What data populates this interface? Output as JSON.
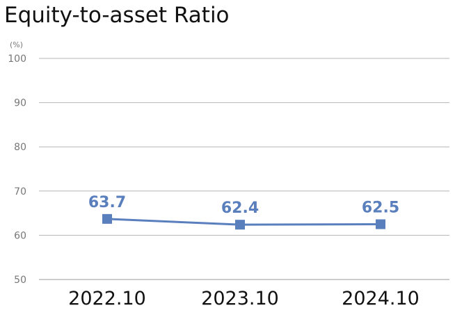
{
  "chart_data": {
    "type": "line",
    "title": "Equity-to-asset Ratio",
    "unit_label": "(%)",
    "categories": [
      "2022.10",
      "2023.10",
      "2024.10"
    ],
    "series": [
      {
        "values": [
          63.7,
          62.4,
          62.5
        ]
      }
    ],
    "data_labels": [
      "63.7",
      "62.4",
      "62.5"
    ],
    "ylim": [
      50,
      100
    ],
    "yticks": [
      50,
      60,
      70,
      80,
      90,
      100
    ],
    "grid": true,
    "legend": "none",
    "colors": {
      "line": "#5a7fbd",
      "grid": "#b5b5b5",
      "axis": "#9a9a9a"
    }
  }
}
